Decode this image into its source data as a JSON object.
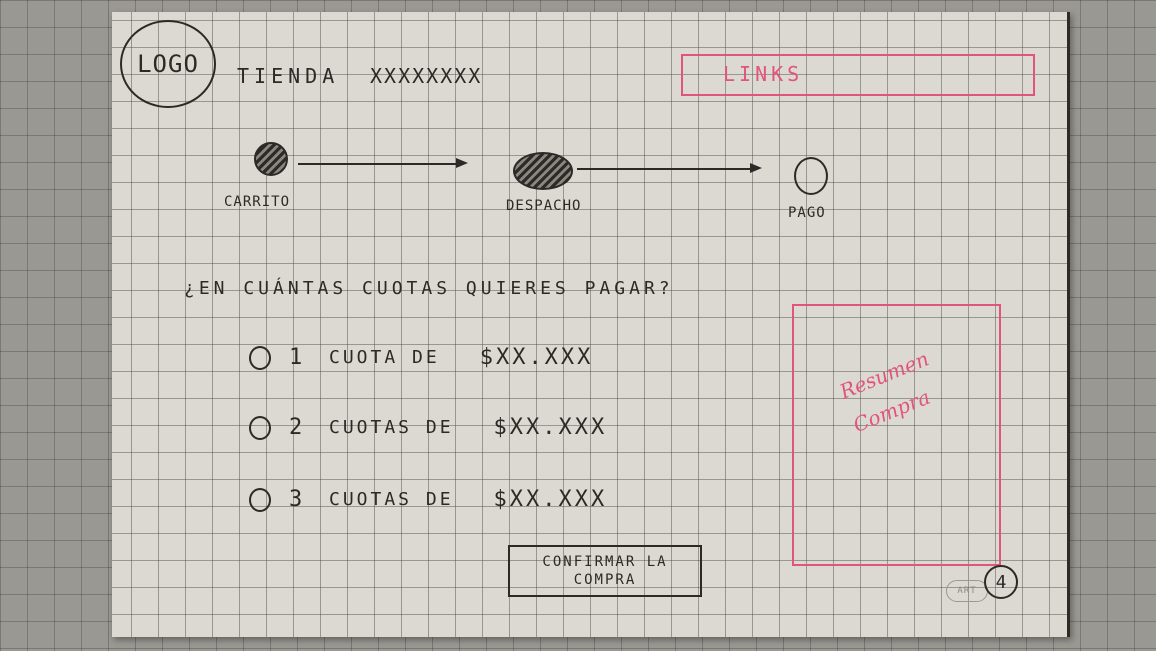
{
  "header": {
    "logo_label": "LOGO",
    "store_name": "TIENDA",
    "store_code": "XXXXXXXX",
    "links_label": "LINKS"
  },
  "checkout_steps": [
    {
      "label": "CARRITO",
      "state": "done"
    },
    {
      "label": "DESPACHO",
      "state": "done"
    },
    {
      "label": "PAGO",
      "state": "pending"
    }
  ],
  "payment": {
    "question": "¿EN CUÁNTAS CUOTAS QUIERES PAGAR?",
    "options": [
      {
        "number": "1",
        "text": "CUOTA DE",
        "amount": "$XX.XXX"
      },
      {
        "number": "2",
        "text": "CUOTAS DE",
        "amount": "$XX.XXX"
      },
      {
        "number": "3",
        "text": "CUOTAS DE",
        "amount": "$XX.XXX"
      }
    ],
    "confirm_label": "CONFIRMAR LA COMPRA"
  },
  "summary": {
    "label": "Resumen\nCompra"
  },
  "page_number": "4",
  "brand_stamp": "ART",
  "colors": {
    "ink": "#2b2a27",
    "accent_pink": "#e2557a",
    "paper": "#dcd9d2"
  }
}
